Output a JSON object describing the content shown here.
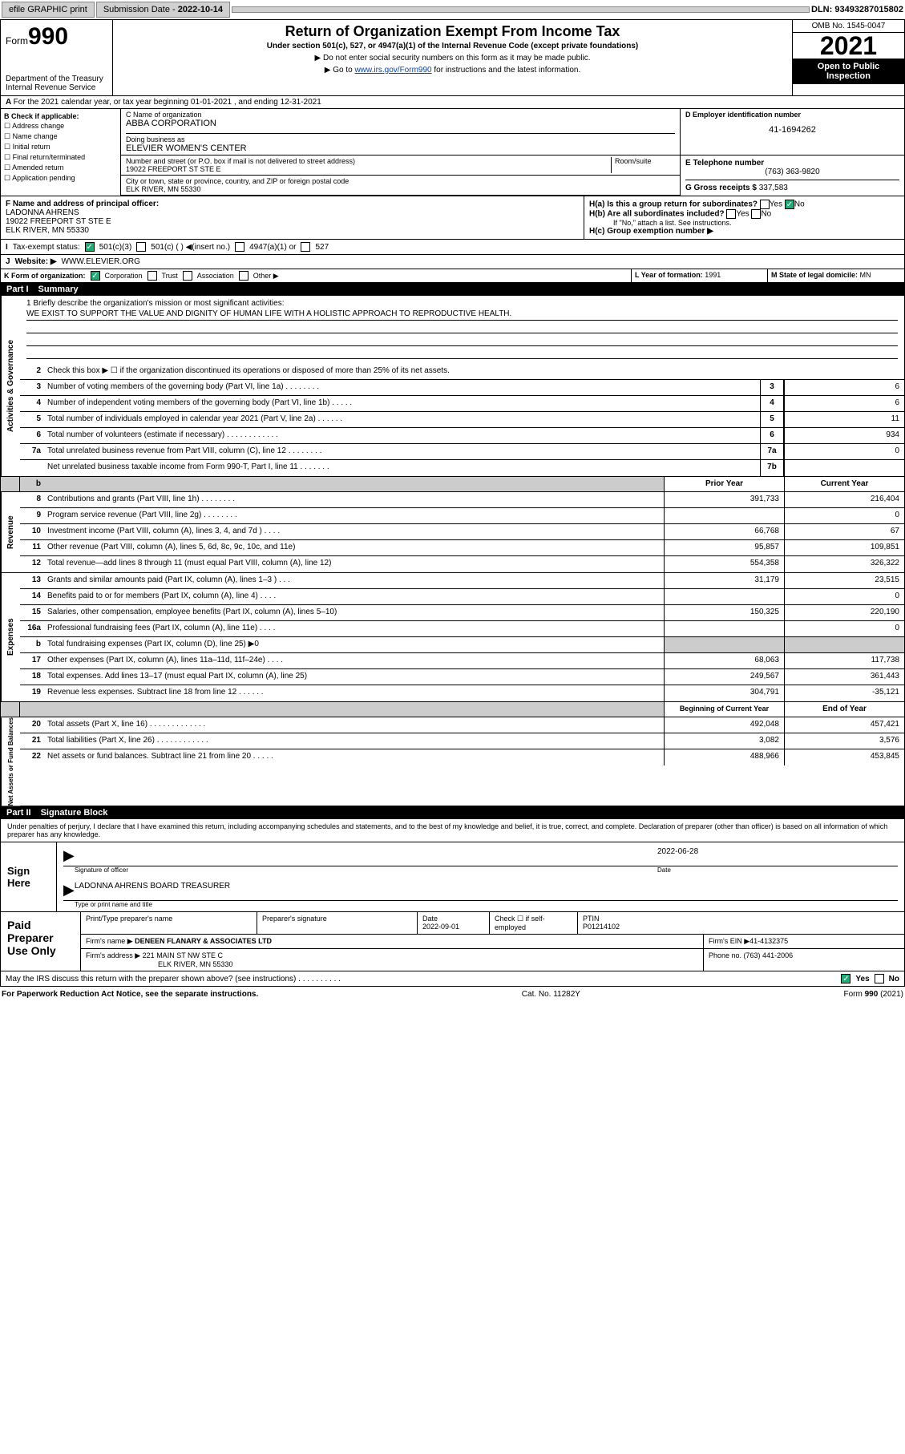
{
  "topbar": {
    "efile": "efile GRAPHIC print",
    "subdate_lbl": "Submission Date - ",
    "subdate": "2022-10-14",
    "dln_lbl": "DLN: ",
    "dln": "93493287015802"
  },
  "header": {
    "form_word": "Form",
    "form_num": "990",
    "dept": "Department of the Treasury",
    "irs": "Internal Revenue Service",
    "title": "Return of Organization Exempt From Income Tax",
    "sub": "Under section 501(c), 527, or 4947(a)(1) of the Internal Revenue Code (except private foundations)",
    "note1": "▶ Do not enter social security numbers on this form as it may be made public.",
    "note2_pre": "▶ Go to ",
    "note2_link": "www.irs.gov/Form990",
    "note2_post": " for instructions and the latest information.",
    "omb": "OMB No. 1545-0047",
    "year": "2021",
    "open": "Open to Public Inspection"
  },
  "secA": {
    "txt": "For the 2021 calendar year, or tax year beginning 01-01-2021   , and ending 12-31-2021"
  },
  "boxB": {
    "hdr": "B Check if applicable:",
    "items": [
      "Address change",
      "Name change",
      "Initial return",
      "Final return/terminated",
      "Amended return",
      "Application pending"
    ]
  },
  "boxC": {
    "name_lbl": "C Name of organization",
    "name": "ABBA CORPORATION",
    "dba_lbl": "Doing business as",
    "dba": "ELEVIER WOMEN'S CENTER",
    "street_lbl": "Number and street (or P.O. box if mail is not delivered to street address)",
    "room_lbl": "Room/suite",
    "street": "19022 FREEPORT ST STE E",
    "city_lbl": "City or town, state or province, country, and ZIP or foreign postal code",
    "city": "ELK RIVER, MN  55330"
  },
  "boxD": {
    "lbl": "D Employer identification number",
    "val": "41-1694262"
  },
  "boxE": {
    "lbl": "E Telephone number",
    "val": "(763) 363-9820"
  },
  "boxG": {
    "lbl": "G Gross receipts $ ",
    "val": "337,583"
  },
  "boxF": {
    "lbl": "F  Name and address of principal officer:",
    "name": "LADONNA AHRENS",
    "addr1": "19022 FREEPORT ST STE E",
    "addr2": "ELK RIVER, MN  55330"
  },
  "boxH": {
    "a_lbl": "H(a)  Is this a group return for subordinates?",
    "a_yes": "Yes",
    "a_no": "No",
    "b_lbl": "H(b)  Are all subordinates included?",
    "b_yes": "Yes",
    "b_no": "No",
    "b_note": "If \"No,\" attach a list. See instructions.",
    "c_lbl": "H(c)  Group exemption number ▶"
  },
  "boxI": {
    "lbl": "Tax-exempt status:",
    "o1": "501(c)(3)",
    "o2": "501(c) (  ) ◀(insert no.)",
    "o3": "4947(a)(1) or",
    "o4": "527"
  },
  "boxJ": {
    "lbl": "Website: ▶",
    "val": "WWW.ELEVIER.ORG"
  },
  "boxK": {
    "lbl": "K Form of organization:",
    "o1": "Corporation",
    "o2": "Trust",
    "o3": "Association",
    "o4": "Other ▶"
  },
  "boxL": {
    "lbl": "L Year of formation: ",
    "val": "1991"
  },
  "boxM": {
    "lbl": "M State of legal domicile: ",
    "val": "MN"
  },
  "part1": {
    "num": "Part I",
    "title": "Summary"
  },
  "mission": {
    "l1_lbl": "1   Briefly describe the organization's mission or most significant activities:",
    "l1_txt": "WE EXIST TO SUPPORT THE VALUE AND DIGNITY OF HUMAN LIFE WITH A HOLISTIC APPROACH TO REPRODUCTIVE HEALTH."
  },
  "gov": {
    "tab": "Activities & Governance",
    "l2": "Check this box ▶ ☐  if the organization discontinued its operations or disposed of more than 25% of its net assets.",
    "rows": [
      {
        "n": "3",
        "t": "Number of voting members of the governing body (Part VI, line 1a)  .   .   .   .   .   .   .   .",
        "b": "3",
        "v": "6"
      },
      {
        "n": "4",
        "t": "Number of independent voting members of the governing body (Part VI, line 1b)  .   .   .   .   .",
        "b": "4",
        "v": "6"
      },
      {
        "n": "5",
        "t": "Total number of individuals employed in calendar year 2021 (Part V, line 2a)  .   .   .   .   .   .",
        "b": "5",
        "v": "11"
      },
      {
        "n": "6",
        "t": "Total number of volunteers (estimate if necessary)  .   .   .   .   .   .   .   .   .   .   .   .",
        "b": "6",
        "v": "934"
      },
      {
        "n": "7a",
        "t": "Total unrelated business revenue from Part VIII, column (C), line 12  .   .   .   .   .   .   .   .",
        "b": "7a",
        "v": "0"
      },
      {
        "n": "",
        "t": "Net unrelated business taxable income from Form 990-T, Part I, line 11  .   .   .   .   .   .   .",
        "b": "7b",
        "v": ""
      }
    ]
  },
  "colhdr": {
    "prior": "Prior Year",
    "curr": "Current Year"
  },
  "rev": {
    "tab": "Revenue",
    "rows": [
      {
        "n": "8",
        "t": "Contributions and grants (Part VIII, line 1h)  .   .   .   .   .   .   .   .",
        "p": "391,733",
        "c": "216,404"
      },
      {
        "n": "9",
        "t": "Program service revenue (Part VIII, line 2g)  .   .   .   .   .   .   .   .",
        "p": "",
        "c": "0"
      },
      {
        "n": "10",
        "t": "Investment income (Part VIII, column (A), lines 3, 4, and 7d )  .   .   .   .",
        "p": "66,768",
        "c": "67"
      },
      {
        "n": "11",
        "t": "Other revenue (Part VIII, column (A), lines 5, 6d, 8c, 9c, 10c, and 11e)",
        "p": "95,857",
        "c": "109,851"
      },
      {
        "n": "12",
        "t": "Total revenue—add lines 8 through 11 (must equal Part VIII, column (A), line 12)",
        "p": "554,358",
        "c": "326,322"
      }
    ]
  },
  "exp": {
    "tab": "Expenses",
    "rows": [
      {
        "n": "13",
        "t": "Grants and similar amounts paid (Part IX, column (A), lines 1–3 )  .   .   .",
        "p": "31,179",
        "c": "23,515"
      },
      {
        "n": "14",
        "t": "Benefits paid to or for members (Part IX, column (A), line 4)  .   .   .   .",
        "p": "",
        "c": "0"
      },
      {
        "n": "15",
        "t": "Salaries, other compensation, employee benefits (Part IX, column (A), lines 5–10)",
        "p": "150,325",
        "c": "220,190"
      },
      {
        "n": "16a",
        "t": "Professional fundraising fees (Part IX, column (A), line 11e)  .   .   .   .",
        "p": "",
        "c": "0"
      },
      {
        "n": "b",
        "t": "Total fundraising expenses (Part IX, column (D), line 25) ▶0",
        "p": "shade",
        "c": "shade"
      },
      {
        "n": "17",
        "t": "Other expenses (Part IX, column (A), lines 11a–11d, 11f–24e)  .   .   .   .",
        "p": "68,063",
        "c": "117,738"
      },
      {
        "n": "18",
        "t": "Total expenses. Add lines 13–17 (must equal Part IX, column (A), line 25)",
        "p": "249,567",
        "c": "361,443"
      },
      {
        "n": "19",
        "t": "Revenue less expenses. Subtract line 18 from line 12  .   .   .   .   .   .",
        "p": "304,791",
        "c": "-35,121"
      }
    ]
  },
  "net": {
    "tab": "Net Assets or Fund Balances",
    "hdr": {
      "b": "Beginning of Current Year",
      "e": "End of Year"
    },
    "rows": [
      {
        "n": "20",
        "t": "Total assets (Part X, line 16)  .   .   .   .   .   .   .   .   .   .   .   .   .",
        "p": "492,048",
        "c": "457,421"
      },
      {
        "n": "21",
        "t": "Total liabilities (Part X, line 26)  .   .   .   .   .   .   .   .   .   .   .   .",
        "p": "3,082",
        "c": "3,576"
      },
      {
        "n": "22",
        "t": "Net assets or fund balances. Subtract line 21 from line 20  .   .   .   .   .",
        "p": "488,966",
        "c": "453,845"
      }
    ]
  },
  "part2": {
    "num": "Part II",
    "title": "Signature Block"
  },
  "sig": {
    "decl": "Under penalties of perjury, I declare that I have examined this return, including accompanying schedules and statements, and to the best of my knowledge and belief, it is true, correct, and complete. Declaration of preparer (other than officer) is based on all information of which preparer has any knowledge.",
    "here": "Sign Here",
    "off_lbl": "Signature of officer",
    "date_lbl": "Date",
    "date": "2022-06-28",
    "name": "LADONNA AHRENS BOARD TREASURER",
    "name_lbl": "Type or print name and title"
  },
  "prep": {
    "lbl": "Paid Preparer Use Only",
    "r1": {
      "c1": "Print/Type preparer's name",
      "c2": "Preparer's signature",
      "c3_lbl": "Date",
      "c3": "2022-09-01",
      "c4_lbl": "Check ☐ if self-employed",
      "c5_lbl": "PTIN",
      "c5": "P01214102"
    },
    "r2": {
      "lbl": "Firm's name      ▶",
      "val": "DENEEN FLANARY & ASSOCIATES LTD",
      "ein_lbl": "Firm's EIN ▶",
      "ein": "41-4132375"
    },
    "r3": {
      "lbl": "Firm's address ▶",
      "val1": "221 MAIN ST NW STE C",
      "val2": "ELK RIVER, MN  55330",
      "ph_lbl": "Phone no. ",
      "ph": "(763) 441-2006"
    }
  },
  "discuss": {
    "txt": "May the IRS discuss this return with the preparer shown above? (see instructions)  .   .   .   .   .   .   .   .   .   .",
    "yes": "Yes",
    "no": "No"
  },
  "footer": {
    "l": "For Paperwork Reduction Act Notice, see the separate instructions.",
    "c": "Cat. No. 11282Y",
    "r": "Form 990 (2021)"
  }
}
